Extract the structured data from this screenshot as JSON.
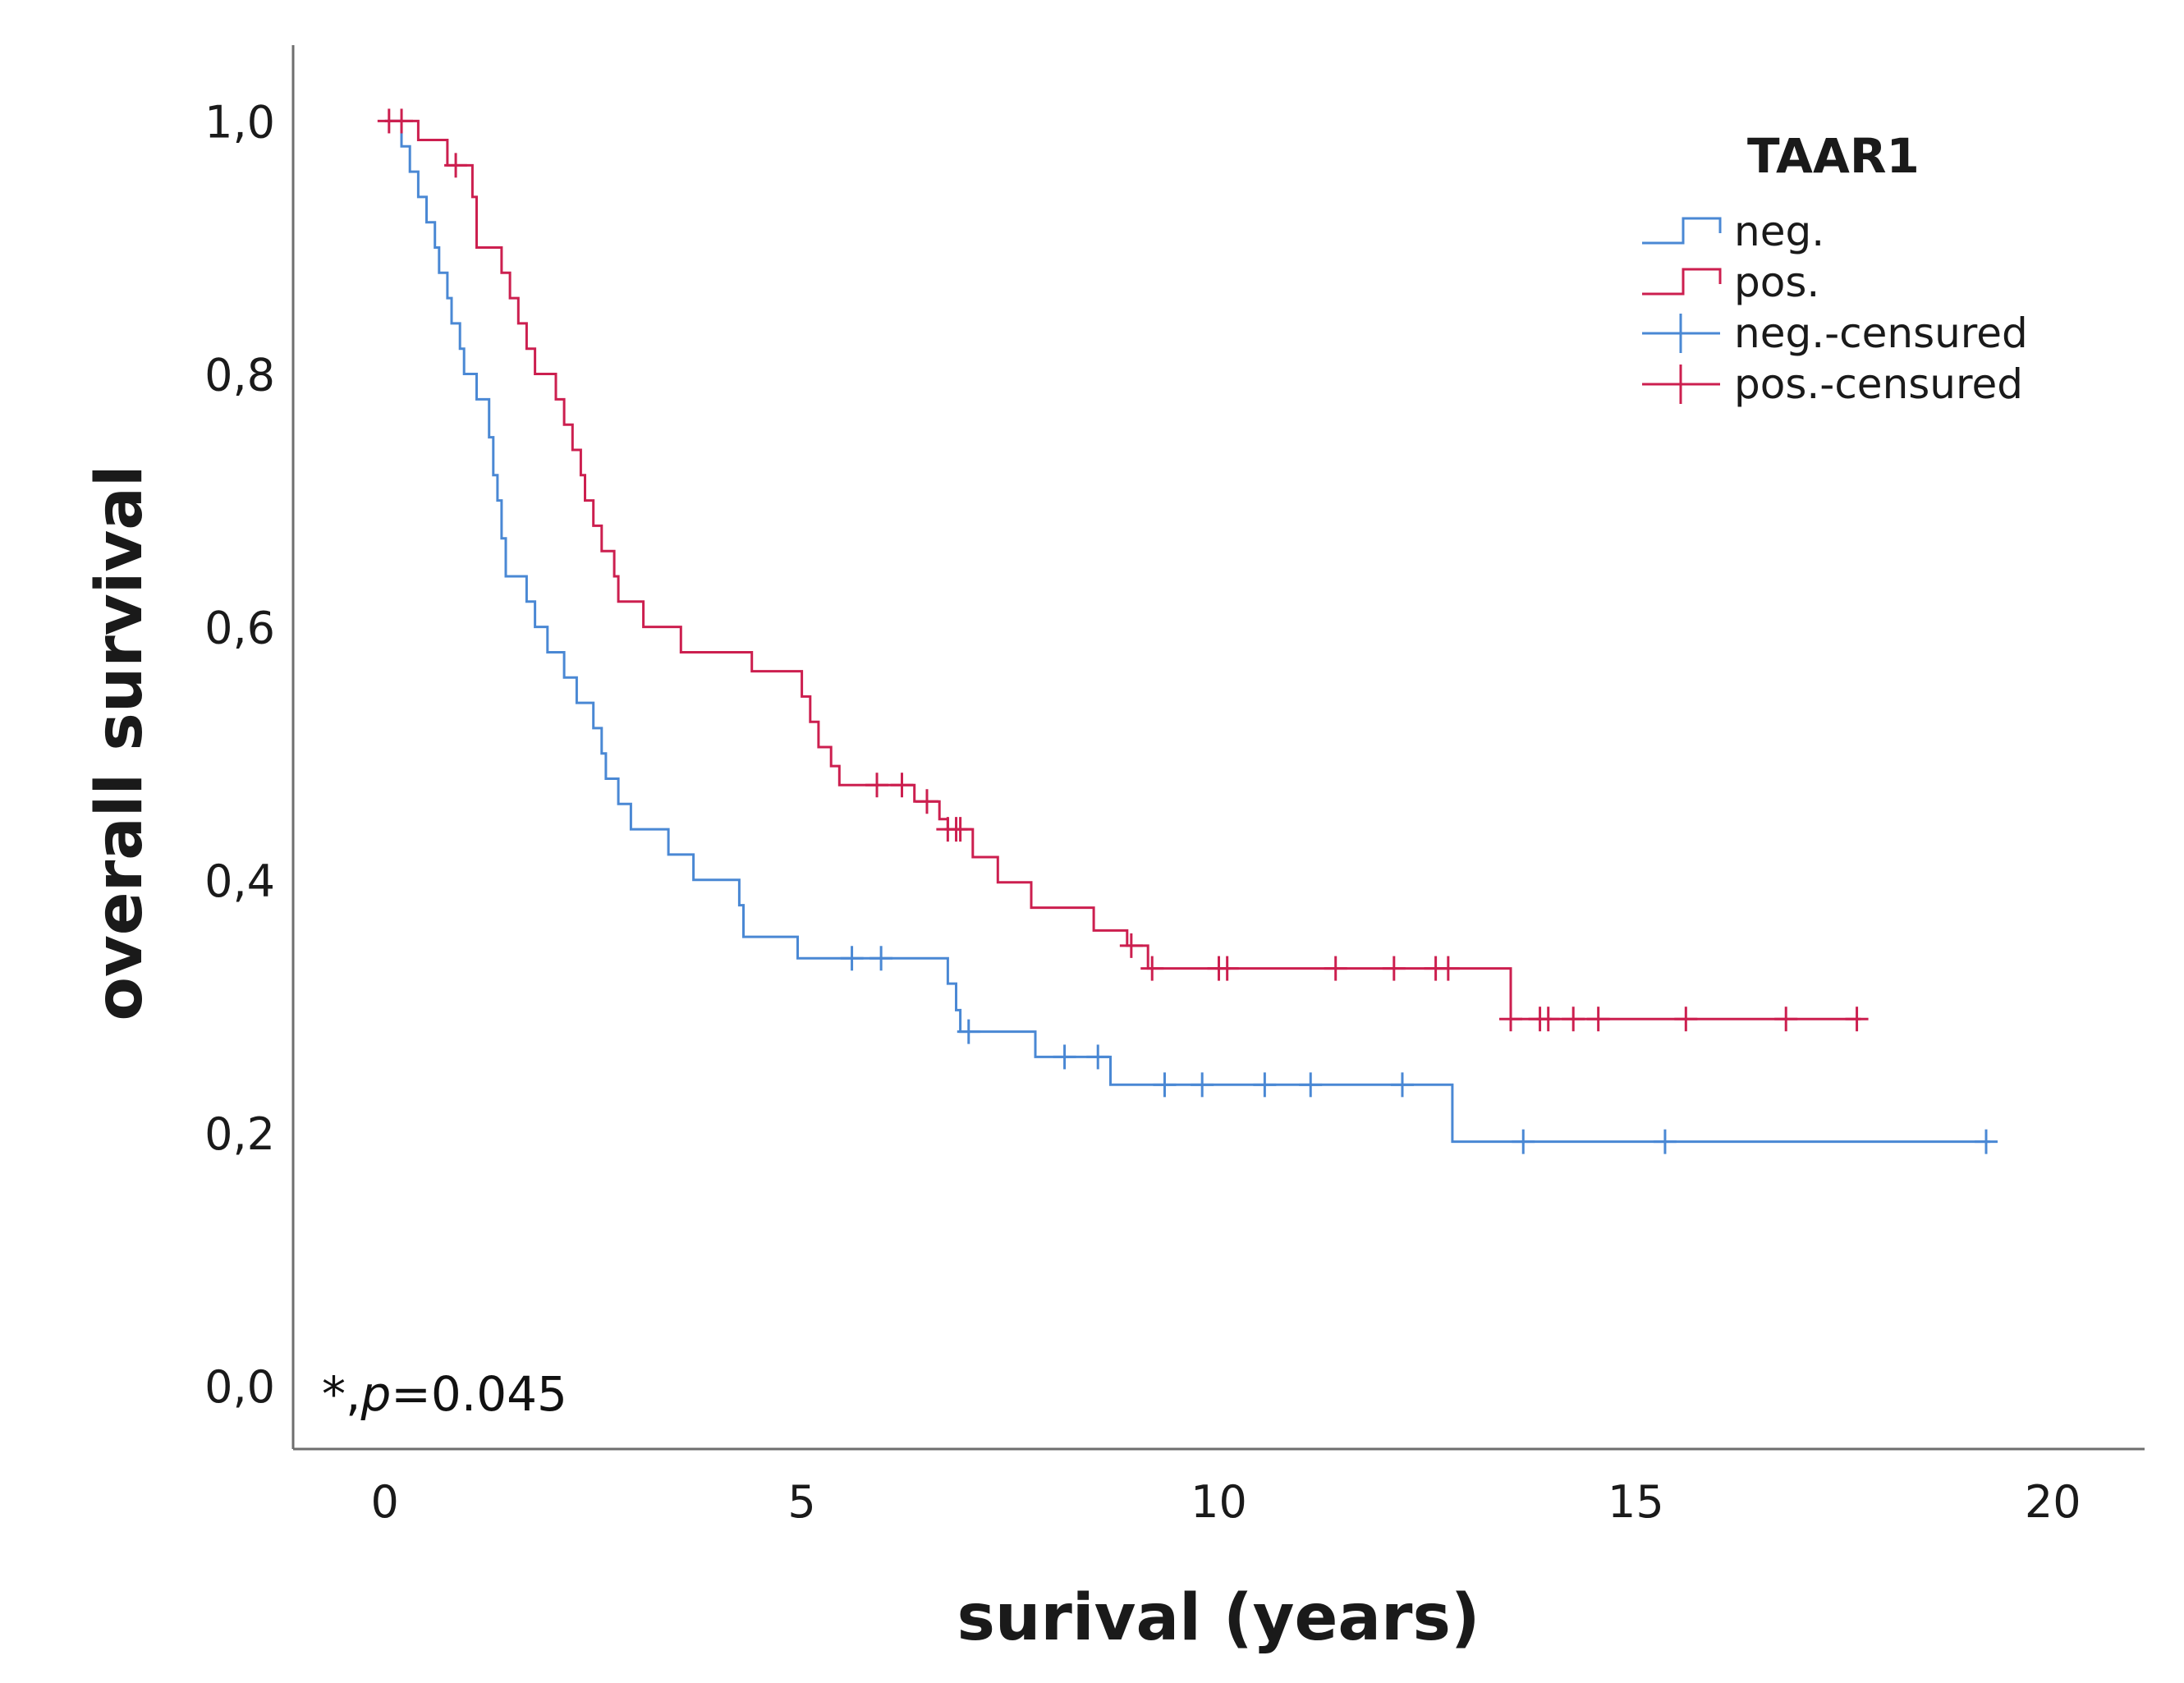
{
  "chart_data": {
    "type": "line",
    "subtype": "kaplan-meier",
    "xlabel": "surival (years)",
    "ylabel": "overall survival",
    "xlim": [
      -1.1,
      21.1
    ],
    "ylim": [
      -0.05,
      1.06
    ],
    "xticks": [
      0,
      5,
      10,
      15,
      20
    ],
    "xtick_labels": [
      "0",
      "5",
      "10",
      "15",
      "20"
    ],
    "yticks": [
      0.0,
      0.2,
      0.4,
      0.6,
      0.8,
      1.0
    ],
    "ytick_labels": [
      "0,0",
      "0,2",
      "0,4",
      "0,6",
      "0,8",
      "1,0"
    ],
    "grid": false,
    "legend": {
      "title": "TAAR1",
      "position": "top-right",
      "entries": [
        {
          "label": "neg.",
          "kind": "step",
          "series": 0
        },
        {
          "label": "pos.",
          "kind": "step",
          "series": 1
        },
        {
          "label": "neg.-censured",
          "kind": "censor",
          "series": 0
        },
        {
          "label": "pos.-censured",
          "kind": "censor",
          "series": 1
        }
      ]
    },
    "annotation": {
      "prefix": "*,",
      "italic": "p",
      "rest": "=0.045"
    },
    "series": [
      {
        "name": "neg.",
        "color": "#4a88d4",
        "steps": [
          [
            0,
            1.0
          ],
          [
            0.15,
            1.0
          ],
          [
            0.2,
            0.98
          ],
          [
            0.3,
            0.96
          ],
          [
            0.4,
            0.94
          ],
          [
            0.5,
            0.92
          ],
          [
            0.6,
            0.9
          ],
          [
            0.65,
            0.88
          ],
          [
            0.75,
            0.86
          ],
          [
            0.8,
            0.84
          ],
          [
            0.9,
            0.82
          ],
          [
            0.95,
            0.8
          ],
          [
            1.1,
            0.78
          ],
          [
            1.25,
            0.75
          ],
          [
            1.3,
            0.72
          ],
          [
            1.35,
            0.7
          ],
          [
            1.4,
            0.67
          ],
          [
            1.45,
            0.64
          ],
          [
            1.7,
            0.62
          ],
          [
            1.8,
            0.6
          ],
          [
            1.95,
            0.58
          ],
          [
            2.15,
            0.56
          ],
          [
            2.3,
            0.54
          ],
          [
            2.5,
            0.52
          ],
          [
            2.6,
            0.5
          ],
          [
            2.65,
            0.48
          ],
          [
            2.8,
            0.46
          ],
          [
            2.95,
            0.44
          ],
          [
            3.4,
            0.42
          ],
          [
            3.7,
            0.4
          ],
          [
            4.25,
            0.38
          ],
          [
            4.3,
            0.355
          ],
          [
            4.95,
            0.338
          ],
          [
            6.75,
            0.318
          ],
          [
            6.85,
            0.297
          ],
          [
            6.9,
            0.28
          ],
          [
            7.8,
            0.26
          ],
          [
            8.7,
            0.238
          ],
          [
            12.75,
            0.238
          ],
          [
            12.8,
            0.193
          ],
          [
            19.25,
            0.193
          ]
        ],
        "censored": [
          [
            5.6,
            0.338
          ],
          [
            5.95,
            0.338
          ],
          [
            7.0,
            0.28
          ],
          [
            8.15,
            0.26
          ],
          [
            8.55,
            0.26
          ],
          [
            9.35,
            0.238
          ],
          [
            9.8,
            0.238
          ],
          [
            10.55,
            0.238
          ],
          [
            11.1,
            0.238
          ],
          [
            12.2,
            0.238
          ],
          [
            13.65,
            0.193
          ],
          [
            15.35,
            0.193
          ],
          [
            19.2,
            0.193
          ]
        ]
      },
      {
        "name": "pos.",
        "color": "#cc1f4f",
        "steps": [
          [
            0,
            1.0
          ],
          [
            0.35,
            1.0
          ],
          [
            0.4,
            0.985
          ],
          [
            0.75,
            0.965
          ],
          [
            1.05,
            0.94
          ],
          [
            1.1,
            0.92
          ],
          [
            1.1,
            0.9
          ],
          [
            1.35,
            0.9
          ],
          [
            1.4,
            0.88
          ],
          [
            1.5,
            0.86
          ],
          [
            1.6,
            0.84
          ],
          [
            1.7,
            0.82
          ],
          [
            1.8,
            0.8
          ],
          [
            2.05,
            0.78
          ],
          [
            2.15,
            0.76
          ],
          [
            2.25,
            0.74
          ],
          [
            2.35,
            0.72
          ],
          [
            2.4,
            0.7
          ],
          [
            2.5,
            0.68
          ],
          [
            2.6,
            0.66
          ],
          [
            2.75,
            0.64
          ],
          [
            2.8,
            0.62
          ],
          [
            3.1,
            0.6
          ],
          [
            3.55,
            0.58
          ],
          [
            4.4,
            0.565
          ],
          [
            5.0,
            0.545
          ],
          [
            5.1,
            0.525
          ],
          [
            5.2,
            0.505
          ],
          [
            5.35,
            0.49
          ],
          [
            5.45,
            0.475
          ],
          [
            6.35,
            0.462
          ],
          [
            6.65,
            0.448
          ],
          [
            6.75,
            0.44
          ],
          [
            7.05,
            0.418
          ],
          [
            7.35,
            0.398
          ],
          [
            7.75,
            0.378
          ],
          [
            8.5,
            0.36
          ],
          [
            8.9,
            0.348
          ],
          [
            9.15,
            0.33
          ],
          [
            13.5,
            0.33
          ],
          [
            13.5,
            0.29
          ],
          [
            17.7,
            0.29
          ]
        ],
        "censored": [
          [
            0.05,
            1.0
          ],
          [
            0.2,
            1.0
          ],
          [
            0.85,
            0.965
          ],
          [
            5.9,
            0.475
          ],
          [
            6.2,
            0.475
          ],
          [
            6.5,
            0.462
          ],
          [
            6.75,
            0.44
          ],
          [
            6.85,
            0.44
          ],
          [
            6.9,
            0.44
          ],
          [
            8.95,
            0.348
          ],
          [
            9.2,
            0.33
          ],
          [
            10.0,
            0.33
          ],
          [
            10.1,
            0.33
          ],
          [
            11.4,
            0.33
          ],
          [
            12.1,
            0.33
          ],
          [
            12.6,
            0.33
          ],
          [
            12.75,
            0.33
          ],
          [
            13.5,
            0.29
          ],
          [
            13.85,
            0.29
          ],
          [
            13.95,
            0.29
          ],
          [
            14.25,
            0.29
          ],
          [
            14.55,
            0.29
          ],
          [
            15.6,
            0.29
          ],
          [
            16.8,
            0.29
          ],
          [
            17.65,
            0.29
          ]
        ]
      }
    ]
  }
}
